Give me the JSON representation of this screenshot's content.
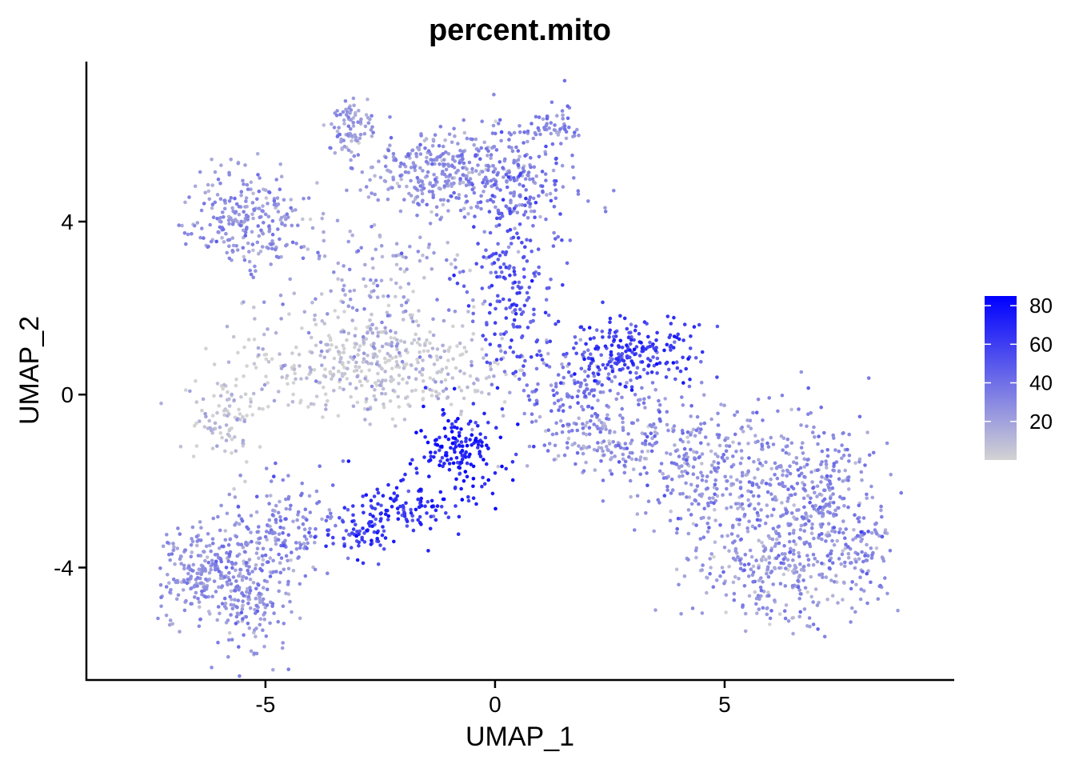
{
  "chart_data": {
    "type": "scatter",
    "title": "percent.mito",
    "xlabel": "UMAP_1",
    "ylabel": "UMAP_2",
    "xlim": [
      -8.9,
      10.0
    ],
    "ylim": [
      -6.6,
      7.7
    ],
    "xticks": [
      -5,
      0,
      5
    ],
    "yticks": [
      -4,
      0,
      4
    ],
    "xtick_labels": [
      "-5",
      "0",
      "5"
    ],
    "ytick_labels": [
      "-4",
      "0",
      "4"
    ],
    "color_scale": {
      "low_color": "#d3d3d3",
      "high_color": "#0000ff",
      "min": 0,
      "max": 85,
      "ticks": [
        20,
        40,
        60,
        80
      ],
      "tick_labels": [
        "20",
        "40",
        "60",
        "80"
      ]
    },
    "clusters": [
      {
        "cx": -3.2,
        "cy": 6.2,
        "sx": 0.25,
        "sy": 0.3,
        "n": 80,
        "value": 22
      },
      {
        "cx": -5.4,
        "cy": 4.1,
        "sx": 0.65,
        "sy": 0.55,
        "n": 240,
        "value": 26
      },
      {
        "cx": -1.2,
        "cy": 5.2,
        "sx": 0.8,
        "sy": 0.45,
        "n": 300,
        "value": 24
      },
      {
        "cx": 0.5,
        "cy": 5.0,
        "sx": 0.7,
        "sy": 0.7,
        "n": 200,
        "value": 32
      },
      {
        "cx": 1.3,
        "cy": 6.2,
        "sx": 0.25,
        "sy": 0.2,
        "n": 40,
        "value": 30
      },
      {
        "cx": -2.5,
        "cy": 2.3,
        "sx": 1.2,
        "sy": 1.0,
        "n": 200,
        "value": 18
      },
      {
        "cx": 0.3,
        "cy": 2.5,
        "sx": 0.45,
        "sy": 1.3,
        "n": 200,
        "value": 50
      },
      {
        "cx": -2.5,
        "cy": 0.6,
        "sx": 1.5,
        "sy": 0.55,
        "n": 400,
        "value": 6
      },
      {
        "cx": -5.9,
        "cy": -0.6,
        "sx": 0.35,
        "sy": 0.6,
        "n": 90,
        "value": 5
      },
      {
        "cx": -0.7,
        "cy": -1.3,
        "sx": 0.5,
        "sy": 0.55,
        "n": 160,
        "value": 72
      },
      {
        "cx": -2.0,
        "cy": -2.6,
        "sx": 0.5,
        "sy": 0.4,
        "n": 110,
        "value": 66
      },
      {
        "cx": -3.0,
        "cy": -3.3,
        "sx": 0.4,
        "sy": 0.3,
        "n": 60,
        "value": 58
      },
      {
        "cx": -6.5,
        "cy": -4.1,
        "sx": 0.45,
        "sy": 0.5,
        "n": 180,
        "value": 24
      },
      {
        "cx": -5.4,
        "cy": -4.4,
        "sx": 0.45,
        "sy": 0.85,
        "n": 260,
        "value": 26
      },
      {
        "cx": -4.4,
        "cy": -3.0,
        "sx": 0.5,
        "sy": 0.6,
        "n": 120,
        "value": 30
      },
      {
        "cx": 3.0,
        "cy": 1.0,
        "sx": 0.75,
        "sy": 0.4,
        "n": 200,
        "value": 60
      },
      {
        "cx": 2.0,
        "cy": 0.1,
        "sx": 0.8,
        "sy": 0.5,
        "n": 140,
        "value": 35
      },
      {
        "cx": 2.3,
        "cy": -1.0,
        "sx": 0.8,
        "sy": 0.45,
        "n": 120,
        "value": 22
      },
      {
        "cx": 4.0,
        "cy": -1.4,
        "sx": 0.9,
        "sy": 0.7,
        "n": 180,
        "value": 28
      },
      {
        "cx": 5.7,
        "cy": -2.2,
        "sx": 1.1,
        "sy": 1.0,
        "n": 330,
        "value": 26
      },
      {
        "cx": 7.2,
        "cy": -2.4,
        "sx": 0.6,
        "sy": 0.9,
        "n": 200,
        "value": 28
      },
      {
        "cx": 6.2,
        "cy": -4.2,
        "sx": 0.9,
        "sy": 0.6,
        "n": 240,
        "value": 22
      },
      {
        "cx": 8.0,
        "cy": -3.7,
        "sx": 0.3,
        "sy": 0.35,
        "n": 60,
        "value": 30
      }
    ]
  }
}
